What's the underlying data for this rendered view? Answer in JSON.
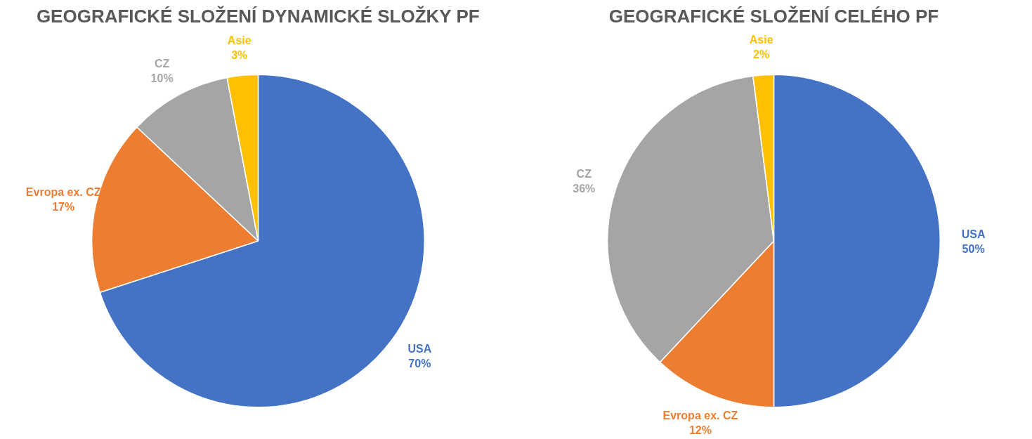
{
  "chart_data": [
    {
      "type": "pie",
      "title": "GEOGRAFICKÉ SLOŽENÍ DYNAMICKÉ SLOŽKY PF",
      "categories": [
        "USA",
        "Evropa ex. CZ",
        "CZ",
        "Asie"
      ],
      "values": [
        70,
        17,
        10,
        3
      ],
      "colors": [
        "#4472c4",
        "#ed7d31",
        "#a5a5a5",
        "#ffc000"
      ],
      "value_labels": [
        "70%",
        "17%",
        "10%",
        "3%"
      ]
    },
    {
      "type": "pie",
      "title": "GEOGRAFICKÉ SLOŽENÍ CELÉHO PF",
      "categories": [
        "USA",
        "Evropa ex. CZ",
        "CZ",
        "Asie"
      ],
      "values": [
        50,
        12,
        36,
        2
      ],
      "colors": [
        "#4472c4",
        "#ed7d31",
        "#a5a5a5",
        "#ffc000"
      ],
      "value_labels": [
        "50%",
        "12%",
        "36%",
        "2%"
      ]
    }
  ]
}
